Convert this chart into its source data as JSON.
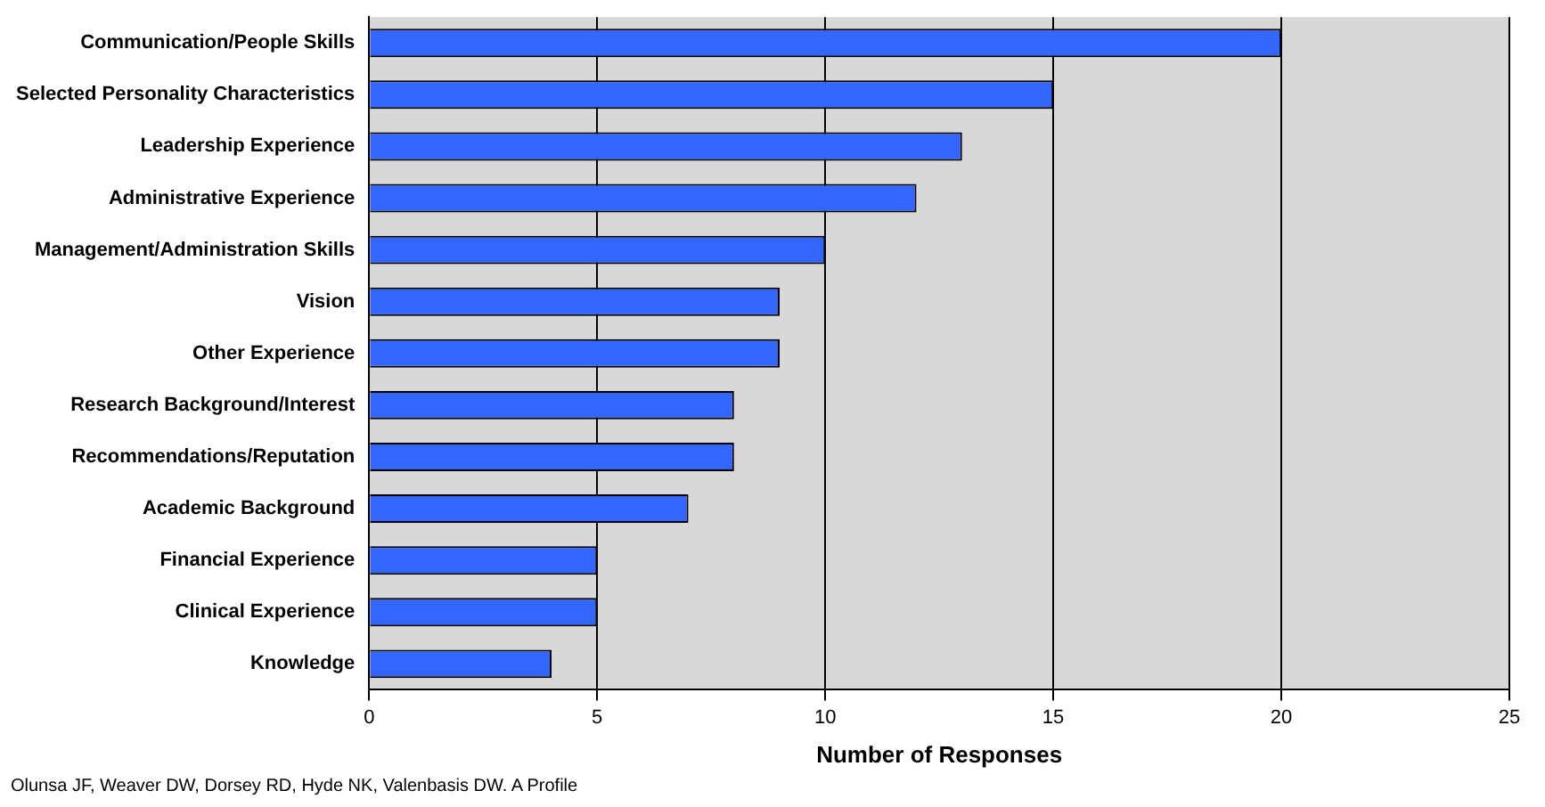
{
  "chart_data": {
    "type": "bar",
    "orientation": "horizontal",
    "xlabel": "Number of Responses",
    "categories": [
      "Communication/People Skills",
      "Selected Personality Characteristics",
      "Leadership Experience",
      "Administrative Experience",
      "Management/Administration Skills",
      "Vision",
      "Other Experience",
      "Research Background/Interest",
      "Recommendations/Reputation",
      "Academic Background",
      "Financial Experience",
      "Clinical Experience",
      "Knowledge"
    ],
    "values": [
      20,
      15,
      13,
      12,
      10,
      9,
      9,
      8,
      8,
      7,
      5,
      5,
      4
    ],
    "color": "#3366ff",
    "xlim": [
      0,
      25
    ],
    "xticks": [
      0,
      5,
      10,
      15,
      20,
      25
    ],
    "grid": "x",
    "legend": false,
    "annotations": [
      "Olunsa JF, Weaver DW, Dorsey RD, Hyde NK, Valenbasis DW. A Profile"
    ]
  }
}
